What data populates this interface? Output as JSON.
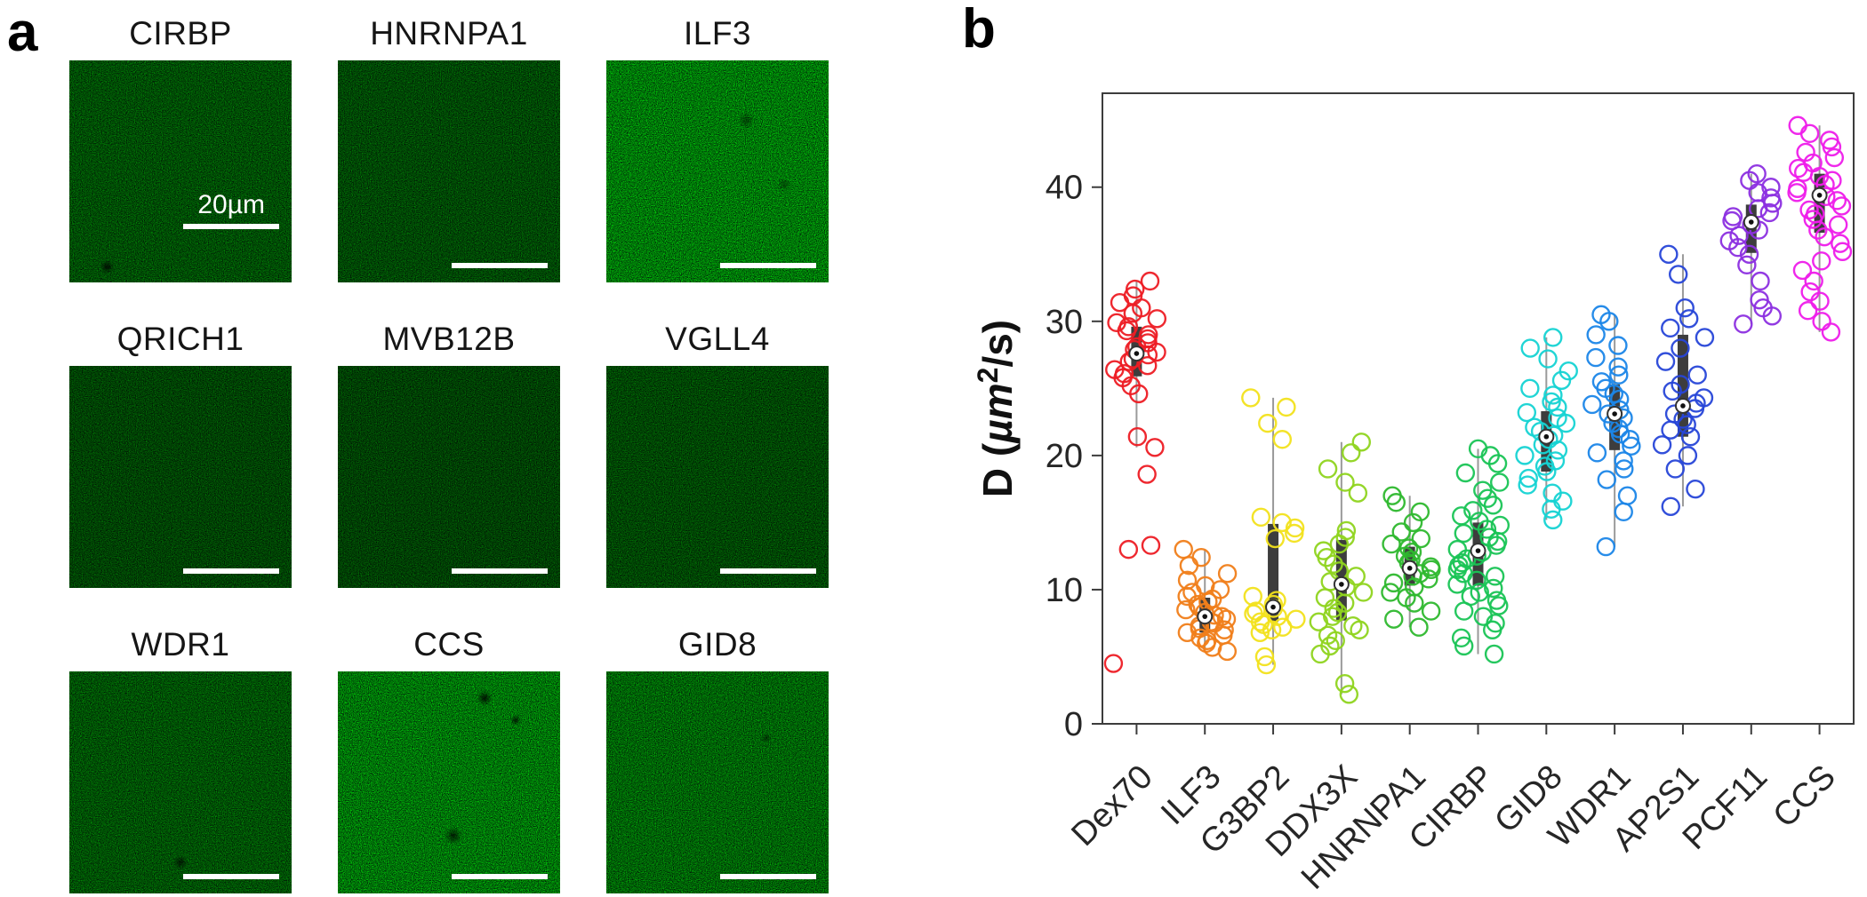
{
  "figure": {
    "panel_a_label": "a",
    "panel_b_label": "b"
  },
  "panel_a": {
    "scale_bar_label": "20µm",
    "images": [
      {
        "label": "CIRBP"
      },
      {
        "label": "HNRNPA1"
      },
      {
        "label": "ILF3"
      },
      {
        "label": "QRICH1"
      },
      {
        "label": "MVB12B"
      },
      {
        "label": "VGLL4"
      },
      {
        "label": "WDR1"
      },
      {
        "label": "CCS"
      },
      {
        "label": "GID8"
      }
    ]
  },
  "chart_data": {
    "type": "scatter",
    "subtype": "jittered-points-with-boxplot",
    "title": "",
    "xlabel": "",
    "ylabel": "D (µm²/s)",
    "ylim": [
      0,
      47
    ],
    "yticks": [
      0,
      10,
      20,
      30,
      40
    ],
    "grid": false,
    "legend": "none",
    "categories": [
      "Dex70",
      "ILF3",
      "G3BP2",
      "DDX3X",
      "HNRNPA1",
      "CIRBP",
      "GID8",
      "WDR1",
      "AP2S1",
      "PCF11",
      "CCS"
    ],
    "box_color": "#3d3d3d",
    "whisker_color": "#9a9a9a",
    "series": [
      {
        "name": "Dex70",
        "color": "#ed1c24",
        "box": {
          "lo": 20.6,
          "q1": 25.9,
          "median": 27.6,
          "q3": 29.6,
          "hi": 33.0
        },
        "points": [
          4.5,
          13.0,
          13.3,
          18.6,
          20.6,
          21.4,
          24.6,
          25.2,
          25.8,
          26.1,
          26.4,
          26.7,
          27.0,
          27.2,
          27.5,
          27.7,
          27.9,
          28.1,
          28.4,
          28.7,
          29.0,
          29.3,
          29.6,
          29.9,
          30.2,
          30.6,
          31.0,
          31.4,
          31.9,
          32.4,
          33.0
        ]
      },
      {
        "name": "ILF3",
        "color": "#f07e1a",
        "box": {
          "lo": 5.4,
          "q1": 6.8,
          "median": 8.0,
          "q3": 9.4,
          "hi": 13.0
        },
        "points": [
          5.4,
          5.7,
          6.0,
          6.2,
          6.4,
          6.6,
          6.8,
          7.0,
          7.1,
          7.3,
          7.5,
          7.6,
          7.8,
          8.0,
          8.1,
          8.3,
          8.5,
          8.7,
          8.9,
          9.1,
          9.3,
          9.5,
          9.8,
          10.0,
          10.3,
          10.7,
          11.2,
          11.8,
          12.4,
          13.0
        ]
      },
      {
        "name": "G3BP2",
        "color": "#f2e21c",
        "box": {
          "lo": 4.4,
          "q1": 7.6,
          "median": 8.7,
          "q3": 14.9,
          "hi": 24.3
        },
        "points": [
          4.4,
          5.0,
          6.8,
          7.0,
          7.2,
          7.4,
          7.6,
          7.8,
          8.0,
          8.2,
          8.4,
          8.6,
          8.9,
          9.2,
          9.5,
          13.8,
          14.2,
          14.6,
          15.0,
          15.4,
          21.2,
          22.4,
          23.6,
          24.3
        ]
      },
      {
        "name": "DDX3X",
        "color": "#8fd41f",
        "box": {
          "lo": 2.2,
          "q1": 7.7,
          "median": 10.4,
          "q3": 13.7,
          "hi": 21.0
        },
        "points": [
          2.2,
          3.0,
          5.2,
          5.8,
          6.2,
          6.6,
          7.0,
          7.3,
          7.6,
          8.0,
          8.3,
          8.6,
          9.0,
          9.4,
          9.8,
          10.2,
          10.6,
          11.0,
          11.4,
          11.9,
          12.4,
          12.9,
          13.4,
          13.9,
          14.4,
          17.2,
          18.0,
          19.0,
          20.2,
          21.0
        ]
      },
      {
        "name": "HNRNPA1",
        "color": "#2eb82e",
        "box": {
          "lo": 7.2,
          "q1": 10.3,
          "median": 11.6,
          "q3": 13.2,
          "hi": 17.0
        },
        "points": [
          7.2,
          7.8,
          8.4,
          9.0,
          9.4,
          9.8,
          10.2,
          10.5,
          10.8,
          11.0,
          11.2,
          11.5,
          11.7,
          12.0,
          12.2,
          12.5,
          12.8,
          13.1,
          13.4,
          13.8,
          14.3,
          15.0,
          15.8,
          16.5,
          17.0
        ]
      },
      {
        "name": "CIRBP",
        "color": "#19c455",
        "box": {
          "lo": 5.2,
          "q1": 10.3,
          "median": 12.9,
          "q3": 15.0,
          "hi": 20.5
        },
        "points": [
          5.2,
          5.8,
          6.4,
          7.0,
          7.5,
          8.0,
          8.4,
          8.8,
          9.2,
          9.5,
          9.8,
          10.1,
          10.4,
          10.7,
          11.0,
          11.2,
          11.5,
          11.8,
          12.0,
          12.3,
          12.5,
          12.8,
          13.0,
          13.3,
          13.6,
          13.9,
          14.2,
          14.5,
          14.8,
          15.1,
          15.5,
          15.9,
          16.3,
          16.8,
          17.4,
          18.0,
          18.7,
          19.4,
          20.0,
          20.5
        ]
      },
      {
        "name": "GID8",
        "color": "#15d3d3",
        "box": {
          "lo": 15.2,
          "q1": 18.8,
          "median": 21.4,
          "q3": 23.3,
          "hi": 28.8
        },
        "points": [
          15.2,
          16.0,
          16.6,
          17.2,
          17.8,
          18.3,
          18.8,
          19.2,
          19.6,
          20.0,
          20.4,
          20.8,
          21.2,
          21.5,
          21.8,
          22.1,
          22.4,
          22.8,
          23.2,
          23.6,
          24.0,
          24.5,
          25.0,
          25.6,
          26.3,
          27.2,
          28.0,
          28.8
        ]
      },
      {
        "name": "WDR1",
        "color": "#1b86e8",
        "box": {
          "lo": 13.2,
          "q1": 20.4,
          "median": 23.1,
          "q3": 25.3,
          "hi": 30.5
        },
        "points": [
          13.2,
          15.8,
          17.0,
          18.2,
          19.0,
          19.6,
          20.2,
          20.7,
          21.2,
          21.6,
          22.0,
          22.4,
          22.8,
          23.1,
          23.4,
          23.8,
          24.2,
          24.6,
          25.0,
          25.5,
          26.0,
          26.6,
          27.3,
          28.2,
          29.0,
          30.0,
          30.5
        ]
      },
      {
        "name": "AP2S1",
        "color": "#2746d8",
        "box": {
          "lo": 16.2,
          "q1": 21.4,
          "median": 23.7,
          "q3": 29.0,
          "hi": 35.0
        },
        "points": [
          16.2,
          17.5,
          19.0,
          20.0,
          20.8,
          21.4,
          21.9,
          22.3,
          22.7,
          23.1,
          23.5,
          23.9,
          24.3,
          24.8,
          25.3,
          26.0,
          27.0,
          28.0,
          28.8,
          29.5,
          30.2,
          31.0,
          33.5,
          35.0
        ]
      },
      {
        "name": "PCF11",
        "color": "#8c2fe0",
        "box": {
          "lo": 29.8,
          "q1": 35.1,
          "median": 37.4,
          "q3": 38.7,
          "hi": 41.0
        },
        "points": [
          29.8,
          30.4,
          31.0,
          31.6,
          33.0,
          34.2,
          35.0,
          35.5,
          36.0,
          36.4,
          36.8,
          37.2,
          37.5,
          37.8,
          38.1,
          38.4,
          38.8,
          39.2,
          39.6,
          40.0,
          40.5,
          41.0
        ]
      },
      {
        "name": "CCS",
        "color": "#ee1cea",
        "box": {
          "lo": 29.2,
          "q1": 36.6,
          "median": 39.4,
          "q3": 41.0,
          "hi": 44.6
        },
        "points": [
          29.2,
          30.0,
          30.8,
          31.5,
          32.2,
          33.0,
          33.8,
          34.5,
          35.2,
          35.8,
          36.3,
          36.8,
          37.2,
          37.6,
          38.0,
          38.3,
          38.6,
          39.0,
          39.3,
          39.6,
          39.9,
          40.2,
          40.5,
          40.8,
          41.1,
          41.4,
          41.8,
          42.2,
          42.6,
          43.0,
          43.5,
          44.0,
          44.6
        ]
      }
    ]
  }
}
